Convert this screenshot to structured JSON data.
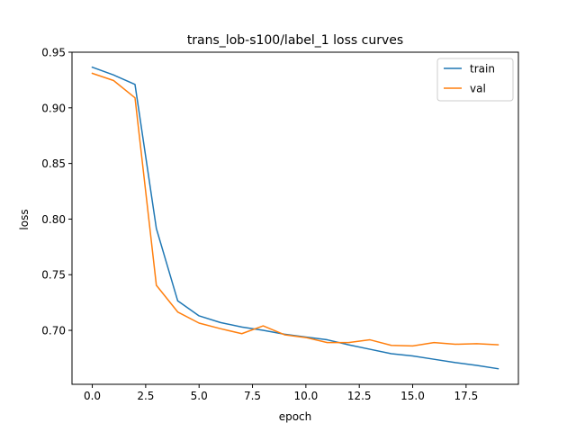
{
  "chart_data": {
    "type": "line",
    "title": "trans_lob-s100/label_1 loss curves",
    "xlabel": "epoch",
    "ylabel": "loss",
    "xlim": [
      -0.95,
      19.95
    ],
    "ylim": [
      0.6515,
      0.95
    ],
    "xticks": [
      0.0,
      2.5,
      5.0,
      7.5,
      10.0,
      12.5,
      15.0,
      17.5
    ],
    "xtick_labels": [
      "0.0",
      "2.5",
      "5.0",
      "7.5",
      "10.0",
      "12.5",
      "15.0",
      "17.5"
    ],
    "yticks": [
      0.7,
      0.75,
      0.8,
      0.85,
      0.9,
      0.95
    ],
    "ytick_labels": [
      "0.70",
      "0.75",
      "0.80",
      "0.85",
      "0.90",
      "0.95"
    ],
    "grid": false,
    "legend_position": "top-right",
    "x": [
      0,
      1,
      2,
      3,
      4,
      5,
      6,
      7,
      8,
      9,
      10,
      11,
      12,
      13,
      14,
      15,
      16,
      17,
      18,
      19
    ],
    "series": [
      {
        "name": "train",
        "color": "#1f77b4",
        "values": [
          0.9365,
          0.9295,
          0.921,
          0.7915,
          0.7265,
          0.713,
          0.707,
          0.703,
          0.7,
          0.6965,
          0.694,
          0.6915,
          0.687,
          0.683,
          0.679,
          0.677,
          0.674,
          0.671,
          0.6685,
          0.6655
        ]
      },
      {
        "name": "val",
        "color": "#ff7f0e",
        "values": [
          0.931,
          0.9245,
          0.909,
          0.7405,
          0.7165,
          0.7065,
          0.7015,
          0.697,
          0.704,
          0.696,
          0.6935,
          0.689,
          0.689,
          0.6915,
          0.6865,
          0.686,
          0.689,
          0.6875,
          0.688,
          0.687
        ]
      }
    ]
  }
}
